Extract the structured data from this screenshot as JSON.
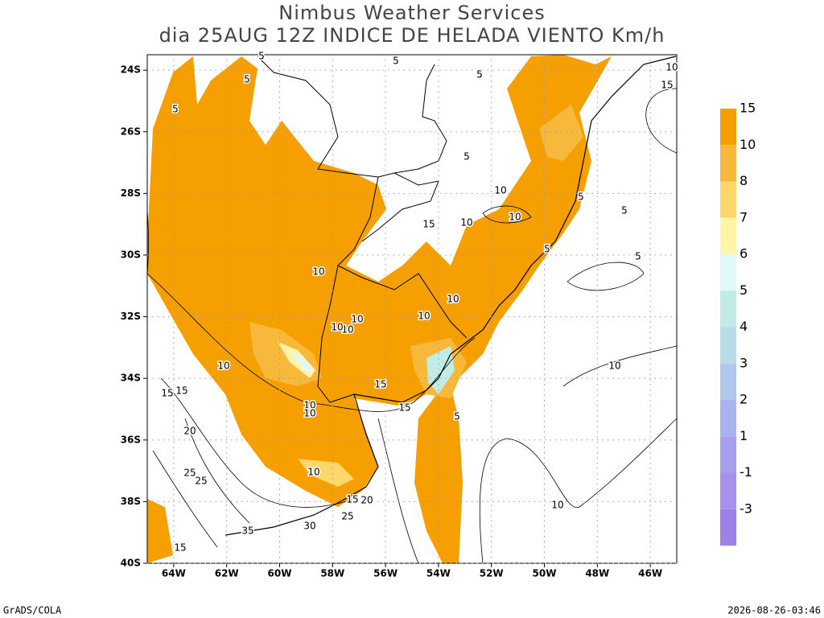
{
  "title": [
    "Nimbus Weather Services",
    "dia 25AUG 12Z INDICE DE HELADA VIENTO Km/h"
  ],
  "map": {
    "xlim": [
      -65,
      -45
    ],
    "ylim": [
      -40,
      -23.5
    ],
    "grid": true,
    "xticks": [
      {
        "value": -64,
        "label": "64W"
      },
      {
        "value": -62,
        "label": "62W"
      },
      {
        "value": -60,
        "label": "60W"
      },
      {
        "value": -58,
        "label": "58W"
      },
      {
        "value": -56,
        "label": "56W"
      },
      {
        "value": -54,
        "label": "54W"
      },
      {
        "value": -52,
        "label": "52W"
      },
      {
        "value": -50,
        "label": "50W"
      },
      {
        "value": -48,
        "label": "48W"
      },
      {
        "value": -46,
        "label": "46W"
      }
    ],
    "yticks": [
      {
        "value": -24,
        "label": "24S"
      },
      {
        "value": -26,
        "label": "26S"
      },
      {
        "value": -28,
        "label": "28S"
      },
      {
        "value": -30,
        "label": "30S"
      },
      {
        "value": -32,
        "label": "32S"
      },
      {
        "value": -34,
        "label": "34S"
      },
      {
        "value": -36,
        "label": "36S"
      },
      {
        "value": -38,
        "label": "38S"
      },
      {
        "value": -40,
        "label": "40S"
      }
    ],
    "contour_labels": [
      5,
      5,
      5,
      5,
      5,
      5,
      10,
      10,
      15,
      10,
      5,
      5,
      5,
      5,
      10,
      10,
      10,
      10,
      10,
      10,
      10,
      15,
      15,
      10,
      10,
      5,
      10,
      15,
      15,
      20,
      25,
      25,
      10,
      15,
      20,
      25,
      30,
      35,
      15,
      10,
      15,
      10
    ]
  },
  "colorbar": {
    "levels": [
      15,
      10,
      8,
      7,
      6,
      5,
      4,
      3,
      2,
      1,
      -1,
      -3
    ],
    "colors": [
      "#f5a000",
      "#f8b83c",
      "#fcd86a",
      "#fff4a8",
      "#e0f8f8",
      "#c0ebe6",
      "#b8dce8",
      "#b0c8ec",
      "#a8b4ee",
      "#a8a0ee",
      "#a890ec",
      "#a080e8"
    ]
  },
  "footer": {
    "left": "GrADS/COLA",
    "right": "2026-08-26-03:46"
  }
}
